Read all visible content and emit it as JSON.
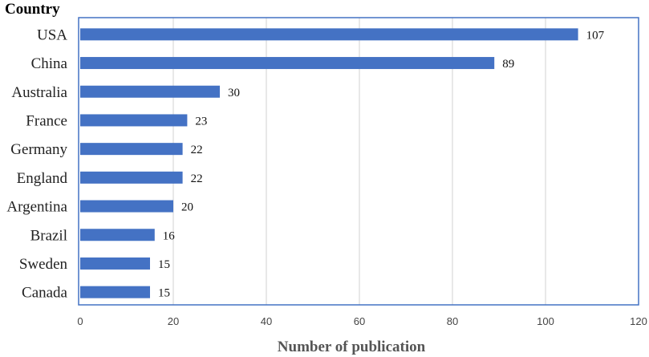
{
  "chart_data": {
    "type": "bar",
    "orientation": "horizontal",
    "categories": [
      "USA",
      "China",
      "Australia",
      "France",
      "Germany",
      "England",
      "Argentina",
      "Brazil",
      "Sweden",
      "Canada"
    ],
    "values": [
      107,
      89,
      30,
      23,
      22,
      22,
      20,
      16,
      15,
      15
    ],
    "xlabel": "Number of publication",
    "ylabel": "Country",
    "xlim": [
      0,
      120
    ],
    "xticks": [
      0,
      20,
      40,
      60,
      80,
      100,
      120
    ],
    "grid": "vertical",
    "bar_color": "#4472c4",
    "frame_color": "#4472c4"
  }
}
